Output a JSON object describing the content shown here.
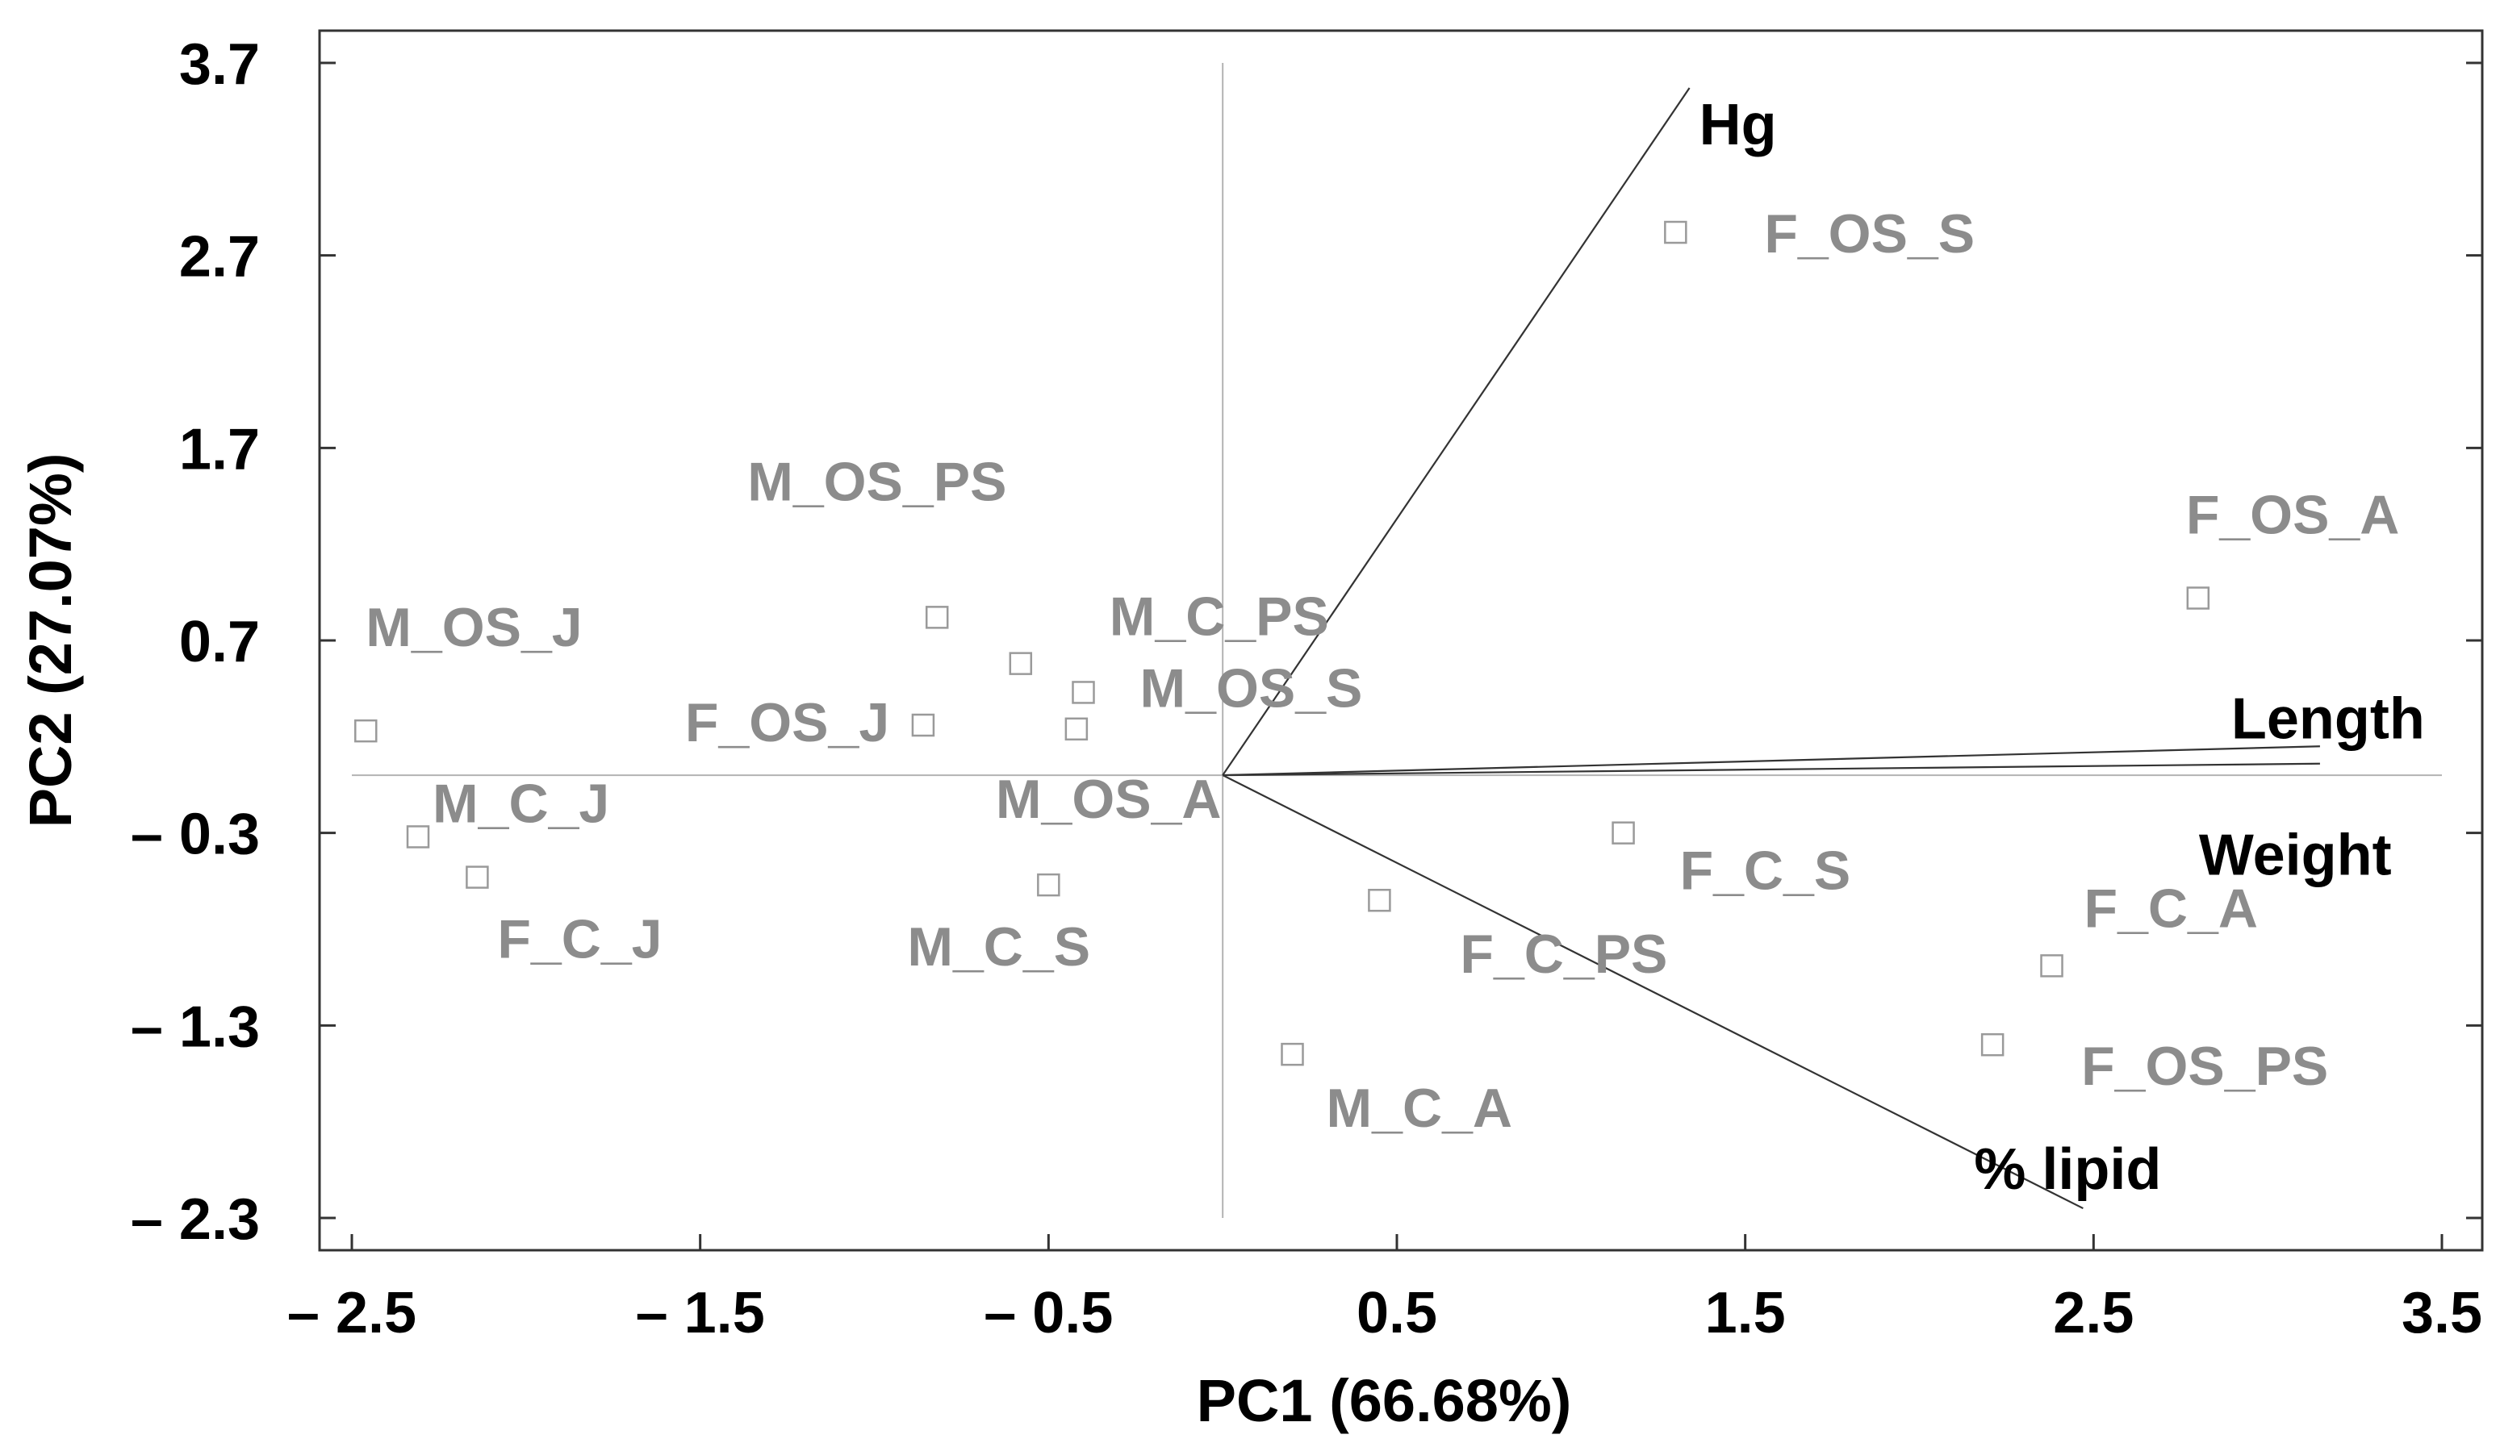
{
  "chart_data": {
    "type": "scatter",
    "xlabel": "PC1 (66.68%)",
    "ylabel": "PC2 (27.07%)",
    "xlim": [
      -2.5,
      3.5
    ],
    "ylim": [
      -2.3,
      3.7
    ],
    "x_ticks": [
      -2.5,
      -1.5,
      -0.5,
      0.5,
      1.5,
      2.5,
      3.5
    ],
    "y_ticks": [
      3.7,
      2.7,
      1.7,
      0.7,
      -0.3,
      -1.3,
      -2.3
    ],
    "x_tick_labels": [
      "– 2.5",
      "– 1.5",
      "– 0.5",
      "0.5",
      "1.5",
      "2.5",
      "3.5"
    ],
    "y_tick_labels": [
      "3.7",
      "2.7",
      "1.7",
      "0.7",
      "– 0.3",
      "– 1.3",
      "– 2.3"
    ],
    "grid": false,
    "origin_lines": true,
    "points": [
      {
        "label": "F_OS_S",
        "x": 1.3,
        "y": 2.82
      },
      {
        "label": "F_OS_A",
        "x": 2.8,
        "y": 0.92
      },
      {
        "label": "M_OS_PS",
        "x": -0.82,
        "y": 0.82
      },
      {
        "label": "M_C_PS",
        "x": -0.58,
        "y": 0.58
      },
      {
        "label": "M_OS_J",
        "x": -2.46,
        "y": 0.23
      },
      {
        "label": "F_OS_J",
        "x": -0.86,
        "y": 0.26
      },
      {
        "label": "M_OS_S",
        "x": -0.4,
        "y": 0.43
      },
      {
        "label": "M_OS_A",
        "x": -0.42,
        "y": 0.24
      },
      {
        "label": "M_C_J",
        "x": -2.31,
        "y": -0.32
      },
      {
        "label": "F_C_J",
        "x": -2.14,
        "y": -0.53
      },
      {
        "label": "M_C_S",
        "x": -0.5,
        "y": -0.57
      },
      {
        "label": "F_C_S",
        "x": 1.15,
        "y": -0.3
      },
      {
        "label": "F_C_PS",
        "x": 0.45,
        "y": -0.65
      },
      {
        "label": "M_C_A",
        "x": 0.2,
        "y": -1.45
      },
      {
        "label": "F_C_A",
        "x": 2.38,
        "y": -0.99
      },
      {
        "label": "F_OS_PS",
        "x": 2.21,
        "y": -1.4
      }
    ],
    "vectors": [
      {
        "label": "Hg",
        "x": 1.34,
        "y": 3.57
      },
      {
        "label": "Length",
        "x": 3.15,
        "y": 0.15
      },
      {
        "label": "Weight",
        "x": 3.15,
        "y": 0.06
      },
      {
        "label": "% lipid",
        "x": 2.47,
        "y": -2.25
      }
    ]
  }
}
